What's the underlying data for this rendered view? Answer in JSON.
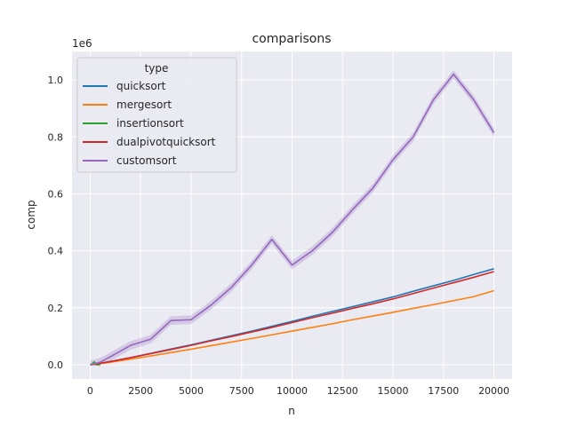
{
  "chart_data": {
    "type": "line",
    "title": "comparisons",
    "xlabel": "n",
    "ylabel": "comp",
    "y_offset_label": "1e6",
    "xlim": [
      -900,
      20900
    ],
    "ylim": [
      -0.05,
      1.1
    ],
    "x_ticks": [
      0,
      2500,
      5000,
      7500,
      10000,
      12500,
      15000,
      17500,
      20000
    ],
    "x_tick_labels": [
      "0",
      "2500",
      "5000",
      "7500",
      "10000",
      "12500",
      "15000",
      "17500",
      "20000"
    ],
    "y_ticks": [
      0.0,
      0.2,
      0.4,
      0.6,
      0.8,
      1.0
    ],
    "y_tick_labels": [
      "0.0",
      "0.2",
      "0.4",
      "0.6",
      "0.8",
      "1.0"
    ],
    "grid": true,
    "legend": {
      "title": "type",
      "placement": "top-left"
    },
    "x": [
      0,
      100,
      200,
      300,
      400,
      500,
      1000,
      2000,
      3000,
      4000,
      5000,
      6000,
      7000,
      8000,
      9000,
      10000,
      11000,
      12000,
      13000,
      14000,
      15000,
      16000,
      17000,
      18000,
      19000,
      20000
    ],
    "series": [
      {
        "name": "quicksort",
        "color": "#1f77b4",
        "values": [
          0.0,
          0.0008,
          0.0018,
          0.0028,
          0.0039,
          0.005,
          0.0113,
          0.025,
          0.04,
          0.055,
          0.07,
          0.086,
          0.102,
          0.118,
          0.135,
          0.152,
          0.17,
          0.187,
          0.204,
          0.221,
          0.238,
          0.258,
          0.277,
          0.296,
          0.317,
          0.337
        ]
      },
      {
        "name": "mergesort",
        "color": "#ff7f0e",
        "values": [
          0.0,
          0.0005,
          0.0013,
          0.0022,
          0.003,
          0.0039,
          0.0087,
          0.0193,
          0.0307,
          0.0425,
          0.0546,
          0.067,
          0.0795,
          0.0922,
          0.105,
          0.118,
          0.131,
          0.144,
          0.158,
          0.171,
          0.184,
          0.198,
          0.211,
          0.225,
          0.239,
          0.26
        ]
      },
      {
        "name": "insertionsort",
        "color": "#2ca02c",
        "values": [
          0.0,
          0.0025,
          0.01,
          0.0,
          0.0,
          0.0,
          null,
          null,
          null,
          null,
          null,
          null,
          null,
          null,
          null,
          null,
          null,
          null,
          null,
          null,
          null,
          null,
          null,
          null,
          null,
          null
        ]
      },
      {
        "name": "dualpivotquicksort",
        "color": "#d62728",
        "values": [
          0.0,
          0.0008,
          0.0017,
          0.0027,
          0.0038,
          0.0049,
          0.011,
          0.0245,
          0.039,
          0.0535,
          0.068,
          0.084,
          0.099,
          0.115,
          0.131,
          0.148,
          0.165,
          0.181,
          0.198,
          0.214,
          0.231,
          0.25,
          0.269,
          0.288,
          0.307,
          0.327
        ]
      },
      {
        "name": "customsort",
        "color": "#9467bd",
        "values": [
          0.0,
          0.0015,
          0.003,
          0.005,
          0.007,
          0.009,
          0.028,
          0.068,
          0.09,
          0.155,
          0.158,
          0.21,
          0.272,
          0.35,
          0.44,
          0.35,
          0.4,
          0.465,
          0.545,
          0.62,
          0.72,
          0.8,
          0.93,
          1.02,
          0.93,
          0.815
        ],
        "band": 0.015
      }
    ]
  }
}
